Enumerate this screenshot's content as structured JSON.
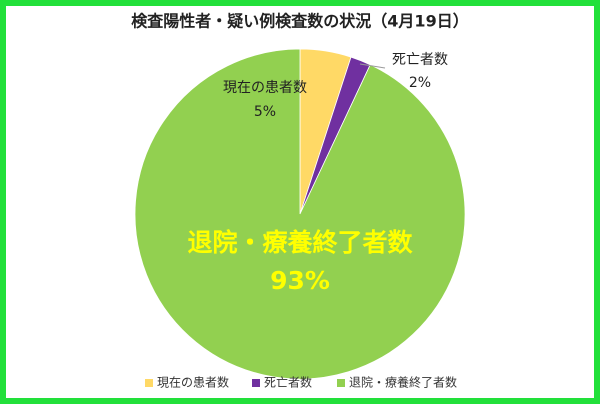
{
  "chart_data": {
    "type": "pie",
    "title": "検査陽性者・疑い例検査数の状況（4月19日）",
    "categories": [
      "現在の患者数",
      "死亡者数",
      "退院・療養終了者数"
    ],
    "values": [
      5,
      2,
      93
    ],
    "value_labels": [
      "5%",
      "2%",
      "93%"
    ],
    "colors": [
      "#ffd966",
      "#7030a0",
      "#92d050"
    ],
    "legend": "bottom"
  }
}
